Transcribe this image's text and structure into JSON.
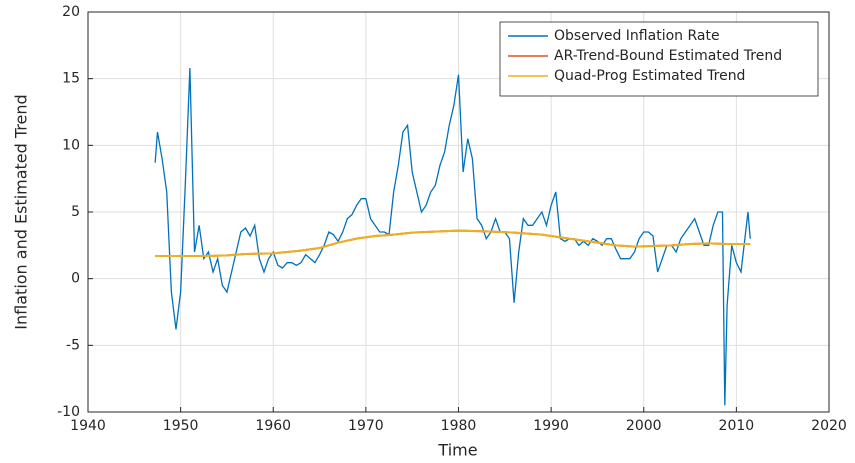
{
  "chart_data": {
    "type": "line",
    "xlabel": "Time",
    "ylabel": "Inflation and Estimated Trend",
    "xlim": [
      1940,
      2020
    ],
    "xticks": [
      1940,
      1950,
      1960,
      1970,
      1980,
      1990,
      2000,
      2010,
      2020
    ],
    "ylim": [
      -10,
      20
    ],
    "yticks": [
      -10,
      -5,
      0,
      5,
      10,
      15,
      20
    ],
    "grid": true,
    "legend": "upper right",
    "series": [
      {
        "name": "Observed Inflation Rate",
        "color": "#0072bd",
        "x": [
          1947.25,
          1947.5,
          1948,
          1948.5,
          1949,
          1949.5,
          1950,
          1950.5,
          1951,
          1951.5,
          1952,
          1952.5,
          1953,
          1953.5,
          1954,
          1954.5,
          1955,
          1955.5,
          1956,
          1956.5,
          1957,
          1957.5,
          1958,
          1958.5,
          1959,
          1959.5,
          1960,
          1960.5,
          1961,
          1961.5,
          1962,
          1962.5,
          1963,
          1963.5,
          1964,
          1964.5,
          1965,
          1965.5,
          1966,
          1966.5,
          1967,
          1967.5,
          1968,
          1968.5,
          1969,
          1969.5,
          1970,
          1970.5,
          1971,
          1971.5,
          1972,
          1972.5,
          1973,
          1973.5,
          1974,
          1974.5,
          1975,
          1975.5,
          1976,
          1976.5,
          1977,
          1977.5,
          1978,
          1978.5,
          1979,
          1979.5,
          1980,
          1980.5,
          1981,
          1981.5,
          1982,
          1982.5,
          1983,
          1983.5,
          1984,
          1984.5,
          1985,
          1985.5,
          1986,
          1986.5,
          1987,
          1987.5,
          1988,
          1988.5,
          1989,
          1989.5,
          1990,
          1990.5,
          1991,
          1991.5,
          1992,
          1992.5,
          1993,
          1993.5,
          1994,
          1994.5,
          1995,
          1995.5,
          1996,
          1996.5,
          1997,
          1997.5,
          1998,
          1998.5,
          1999,
          1999.5,
          2000,
          2000.5,
          2001,
          2001.5,
          2002,
          2002.5,
          2003,
          2003.5,
          2004,
          2004.5,
          2005,
          2005.5,
          2006,
          2006.5,
          2007,
          2007.5,
          2008,
          2008.5,
          2008.75,
          2009,
          2009.5,
          2010,
          2010.5,
          2011,
          2011.25,
          2011.5
        ],
        "values": [
          8.7,
          11,
          9,
          6.5,
          -1,
          -3.8,
          -1,
          7,
          15.8,
          2,
          4,
          1.5,
          2,
          0.5,
          1.5,
          -0.5,
          -1,
          0.5,
          2,
          3.5,
          3.8,
          3.2,
          4,
          1.5,
          0.5,
          1.5,
          2,
          1,
          0.8,
          1.2,
          1.2,
          1,
          1.2,
          1.8,
          1.5,
          1.2,
          1.8,
          2.5,
          3.5,
          3.3,
          2.8,
          3.5,
          4.5,
          4.8,
          5.5,
          6,
          6,
          4.5,
          4,
          3.5,
          3.5,
          3.3,
          6.5,
          8.5,
          11,
          11.5,
          8,
          6.5,
          5,
          5.5,
          6.5,
          7,
          8.5,
          9.5,
          11.5,
          13,
          15.3,
          8,
          10.5,
          9,
          4.5,
          4,
          3,
          3.5,
          4.5,
          3.5,
          3.5,
          3,
          -1.8,
          2,
          4.5,
          4,
          4,
          4.5,
          5,
          4,
          5.5,
          6.5,
          3,
          2.8,
          3,
          3,
          2.5,
          2.8,
          2.5,
          3,
          2.8,
          2.5,
          3,
          3,
          2.2,
          1.5,
          1.5,
          1.5,
          2,
          3,
          3.5,
          3.5,
          3.2,
          0.5,
          1.5,
          2.5,
          2.5,
          2,
          3,
          3.5,
          4,
          4.5,
          3.5,
          2.5,
          2.5,
          4,
          5,
          5,
          -9.5,
          -2,
          2.5,
          1.2,
          0.5,
          3.5,
          5,
          3
        ]
      },
      {
        "name": "AR-Trend-Bound Estimated Trend",
        "color": "#d95319",
        "x": [
          1947.25,
          1950,
          1953,
          1955,
          1957,
          1960,
          1963,
          1965,
          1967,
          1969,
          1971,
          1973,
          1975,
          1978,
          1980,
          1983,
          1986,
          1989,
          1991,
          1993,
          1995,
          1997,
          1999,
          2001,
          2003,
          2005,
          2007,
          2009,
          2011.5
        ],
        "values": [
          1.7,
          1.7,
          1.7,
          1.75,
          1.85,
          1.9,
          2.1,
          2.3,
          2.7,
          3.0,
          3.2,
          3.3,
          3.45,
          3.55,
          3.6,
          3.55,
          3.45,
          3.3,
          3.1,
          2.9,
          2.7,
          2.5,
          2.4,
          2.45,
          2.5,
          2.6,
          2.65,
          2.6,
          2.6
        ]
      },
      {
        "name": "Quad-Prog Estimated Trend",
        "color": "#edb120",
        "x": [
          1947.25,
          1950,
          1953,
          1955,
          1957,
          1960,
          1963,
          1965,
          1967,
          1969,
          1971,
          1973,
          1975,
          1978,
          1980,
          1983,
          1986,
          1989,
          1991,
          1993,
          1995,
          1997,
          1999,
          2001,
          2003,
          2005,
          2007,
          2009,
          2011.5
        ],
        "values": [
          1.7,
          1.7,
          1.7,
          1.75,
          1.85,
          1.9,
          2.1,
          2.3,
          2.7,
          3.0,
          3.2,
          3.3,
          3.45,
          3.55,
          3.6,
          3.55,
          3.45,
          3.3,
          3.1,
          2.9,
          2.7,
          2.5,
          2.4,
          2.45,
          2.5,
          2.6,
          2.65,
          2.6,
          2.6
        ]
      }
    ]
  }
}
